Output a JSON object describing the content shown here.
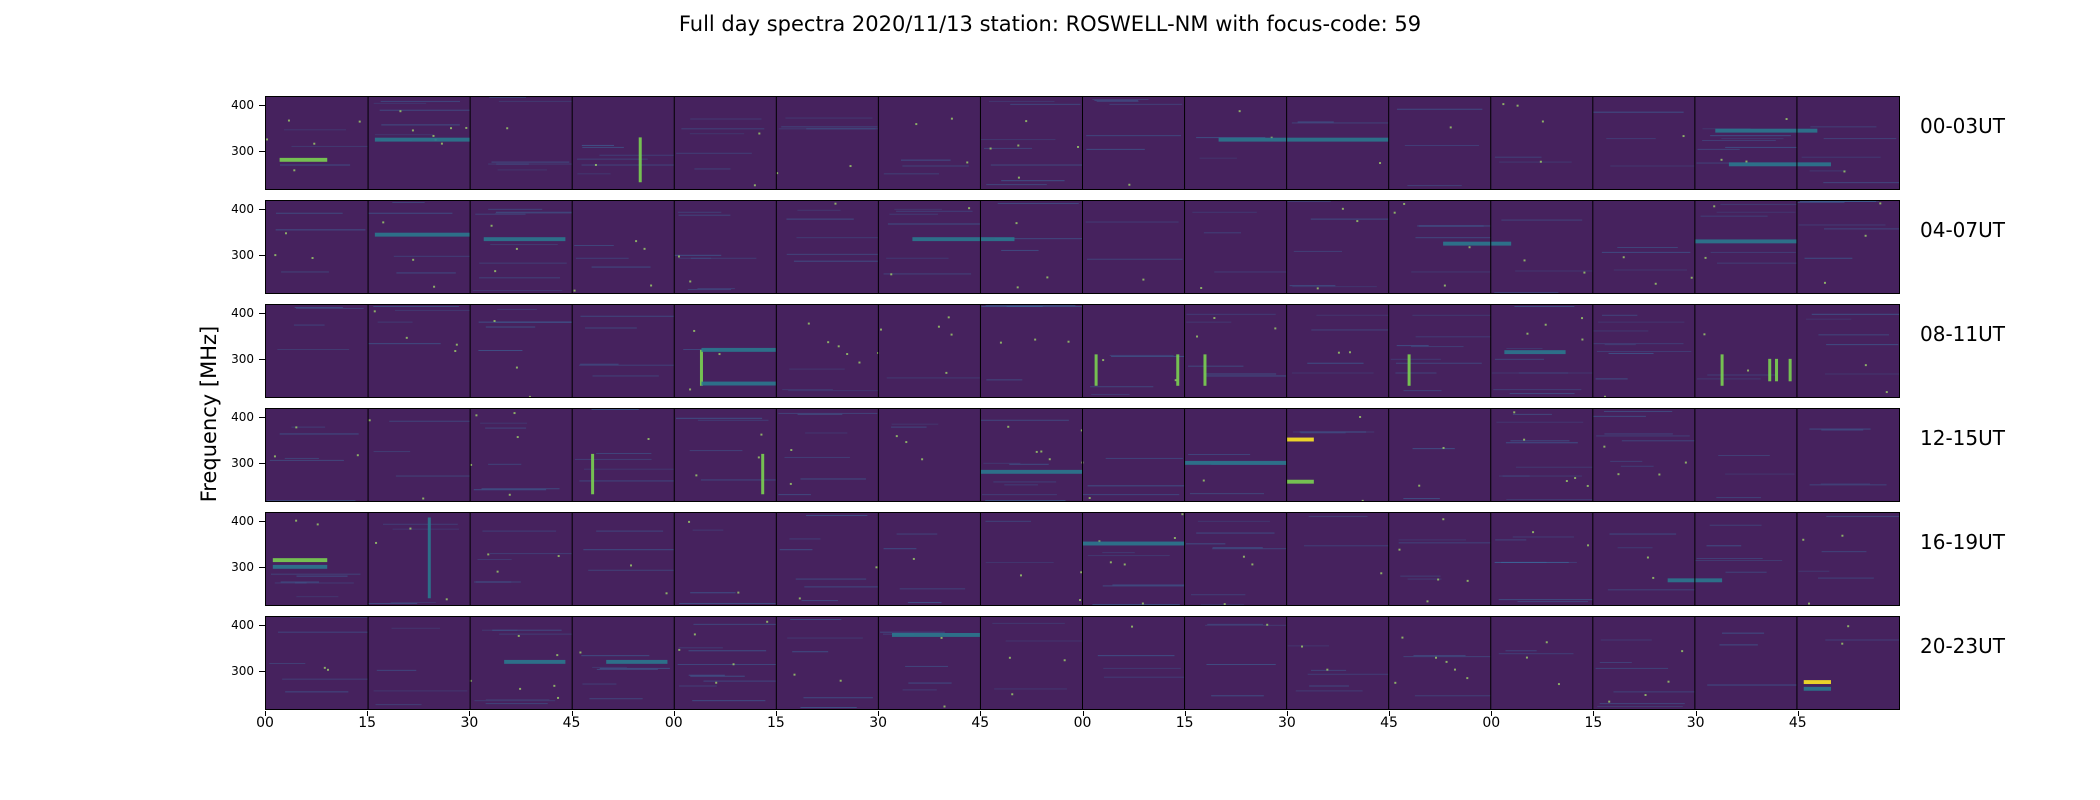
{
  "title": "Full day spectra 2020/11/13 station: ROSWELL-NM with focus-code: 59",
  "chart_data": {
    "type": "heatmap",
    "title": "Full day spectra 2020/11/13 station: ROSWELL-NM with focus-code: 59",
    "ylabel": "Frequency [MHz]",
    "xlabel": "",
    "y_ticks": [
      "400",
      "300"
    ],
    "ylim": [
      215,
      420
    ],
    "x_ticks": [
      "00",
      "15",
      "30",
      "45",
      "00",
      "15",
      "30",
      "45",
      "00",
      "15",
      "30",
      "45",
      "00",
      "15",
      "30",
      "45"
    ],
    "colormap": "viridis",
    "colors": {
      "background": "#46225e",
      "low": "#482576",
      "mid": "#2a788e",
      "high": "#7ad151",
      "peak": "#fde725"
    },
    "panels_per_row": 16,
    "minutes_per_panel": 15,
    "rows": [
      {
        "label": "00-03UT",
        "features": [
          {
            "minute": 2,
            "minute_end": 9,
            "freq": 280,
            "intensity": "high",
            "kind": "band"
          },
          {
            "minute": 55,
            "freq": 230,
            "freq_end": 330,
            "intensity": "high",
            "kind": "burst"
          },
          {
            "minute": 16,
            "minute_end": 30,
            "freq": 325,
            "intensity": "mid",
            "kind": "band"
          },
          {
            "minute": 140,
            "minute_end": 165,
            "freq": 325,
            "intensity": "mid",
            "kind": "band"
          },
          {
            "minute": 213,
            "minute_end": 228,
            "freq": 345,
            "intensity": "mid",
            "kind": "band"
          },
          {
            "minute": 215,
            "minute_end": 230,
            "freq": 270,
            "intensity": "mid",
            "kind": "band"
          }
        ]
      },
      {
        "label": "04-07UT",
        "features": [
          {
            "minute": 16,
            "minute_end": 30,
            "freq": 345,
            "intensity": "mid",
            "kind": "band"
          },
          {
            "minute": 32,
            "minute_end": 44,
            "freq": 335,
            "intensity": "mid",
            "kind": "band"
          },
          {
            "minute": 95,
            "minute_end": 110,
            "freq": 335,
            "intensity": "mid",
            "kind": "band"
          },
          {
            "minute": 173,
            "minute_end": 183,
            "freq": 325,
            "intensity": "mid",
            "kind": "band"
          },
          {
            "minute": 210,
            "minute_end": 225,
            "freq": 330,
            "intensity": "mid",
            "kind": "band"
          }
        ]
      },
      {
        "label": "08-11UT",
        "features": [
          {
            "minute": 64,
            "freq": 240,
            "freq_end": 320,
            "intensity": "high",
            "kind": "burst"
          },
          {
            "minute": 64,
            "minute_end": 75,
            "freq": 320,
            "intensity": "mid",
            "kind": "band"
          },
          {
            "minute": 64,
            "minute_end": 75,
            "freq": 245,
            "intensity": "mid",
            "kind": "band"
          },
          {
            "minute": 122,
            "freq": 240,
            "freq_end": 310,
            "intensity": "high",
            "kind": "burst"
          },
          {
            "minute": 134,
            "freq": 240,
            "freq_end": 310,
            "intensity": "high",
            "kind": "burst"
          },
          {
            "minute": 138,
            "freq": 240,
            "freq_end": 310,
            "intensity": "high",
            "kind": "burst"
          },
          {
            "minute": 168,
            "freq": 240,
            "freq_end": 310,
            "intensity": "high",
            "kind": "burst"
          },
          {
            "minute": 214,
            "freq": 240,
            "freq_end": 310,
            "intensity": "high",
            "kind": "burst"
          },
          {
            "minute": 221,
            "freq": 250,
            "freq_end": 300,
            "intensity": "high",
            "kind": "burst"
          },
          {
            "minute": 222,
            "freq": 250,
            "freq_end": 300,
            "intensity": "high",
            "kind": "burst"
          },
          {
            "minute": 224,
            "freq": 250,
            "freq_end": 300,
            "intensity": "high",
            "kind": "burst"
          },
          {
            "minute": 182,
            "minute_end": 191,
            "freq": 315,
            "intensity": "mid",
            "kind": "band"
          }
        ]
      },
      {
        "label": "12-15UT",
        "features": [
          {
            "minute": 48,
            "freq": 230,
            "freq_end": 320,
            "intensity": "high",
            "kind": "burst"
          },
          {
            "minute": 73,
            "freq": 230,
            "freq_end": 320,
            "intensity": "high",
            "kind": "burst"
          },
          {
            "minute": 150,
            "minute_end": 154,
            "freq": 352,
            "intensity": "peak",
            "kind": "band"
          },
          {
            "minute": 150,
            "minute_end": 154,
            "freq": 258,
            "intensity": "high",
            "kind": "band"
          },
          {
            "minute": 105,
            "minute_end": 120,
            "freq": 280,
            "intensity": "mid",
            "kind": "band"
          },
          {
            "minute": 135,
            "minute_end": 150,
            "freq": 300,
            "intensity": "mid",
            "kind": "band"
          }
        ]
      },
      {
        "label": "16-19UT",
        "features": [
          {
            "minute": 1,
            "minute_end": 9,
            "freq": 315,
            "intensity": "high",
            "kind": "band"
          },
          {
            "minute": 1,
            "minute_end": 9,
            "freq": 300,
            "intensity": "mid",
            "kind": "band"
          },
          {
            "minute": 24,
            "freq": 230,
            "freq_end": 410,
            "intensity": "mid",
            "kind": "burst"
          },
          {
            "minute": 120,
            "minute_end": 135,
            "freq": 352,
            "intensity": "mid",
            "kind": "band"
          },
          {
            "minute": 206,
            "minute_end": 214,
            "freq": 270,
            "intensity": "mid",
            "kind": "band"
          }
        ]
      },
      {
        "label": "20-23UT",
        "features": [
          {
            "minute": 35,
            "minute_end": 44,
            "freq": 320,
            "intensity": "mid",
            "kind": "band"
          },
          {
            "minute": 50,
            "minute_end": 59,
            "freq": 320,
            "intensity": "mid",
            "kind": "band"
          },
          {
            "minute": 92,
            "minute_end": 105,
            "freq": 380,
            "intensity": "mid",
            "kind": "band"
          },
          {
            "minute": 226,
            "minute_end": 230,
            "freq": 275,
            "intensity": "peak",
            "kind": "band"
          },
          {
            "minute": 226,
            "minute_end": 230,
            "freq": 260,
            "intensity": "mid",
            "kind": "band"
          }
        ]
      }
    ]
  }
}
